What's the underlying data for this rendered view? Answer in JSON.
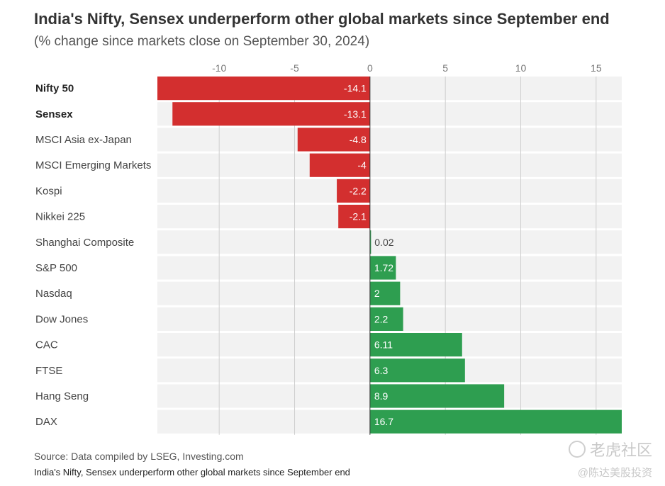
{
  "header": {
    "title": "India's Nifty, Sensex underperform other global markets since September end",
    "subtitle": "(% change since markets close on September 30, 2024)"
  },
  "footer": {
    "source": "Source: Data compiled by LSEG, Investing.com",
    "caption": "India's Nifty, Sensex underperform other global markets since September end"
  },
  "watermark": {
    "main": "老虎社区",
    "sub": "@陈达美股投资"
  },
  "colors": {
    "negative": "#d32f2f",
    "positive": "#2e9e50",
    "row_background": "#f2f2f2",
    "gridline": "#cfcfcf"
  },
  "chart_data": {
    "type": "bar",
    "orientation": "horizontal",
    "title": "India's Nifty, Sensex underperform other global markets since September end",
    "subtitle": "(% change since markets close on September 30, 2024)",
    "xlim": [
      -14.1,
      16.7
    ],
    "ticks": [
      -10,
      -5,
      0,
      5,
      10,
      15
    ],
    "tick_labels": [
      "-10",
      "-5",
      "0",
      "5",
      "10",
      "15"
    ],
    "grid": true,
    "categories": [
      "Nifty 50",
      "Sensex",
      "MSCI Asia ex-Japan",
      "MSCI Emerging Markets",
      "Kospi",
      "Nikkei 225",
      "Shanghai Composite",
      "S&P 500",
      "Nasdaq",
      "Dow Jones",
      "CAC",
      "FTSE",
      "Hang Seng",
      "DAX"
    ],
    "bold_categories": [
      "Nifty 50",
      "Sensex"
    ],
    "values": [
      -14.1,
      -13.1,
      -4.8,
      -4,
      -2.2,
      -2.1,
      0.02,
      1.72,
      2,
      2.2,
      6.11,
      6.3,
      8.9,
      16.7
    ],
    "value_labels": [
      "-14.1",
      "-13.1",
      "-4.8",
      "-4",
      "-2.2",
      "-2.1",
      "0.02",
      "1.72",
      "2",
      "2.2",
      "6.11",
      "6.3",
      "8.9",
      "16.7"
    ]
  }
}
